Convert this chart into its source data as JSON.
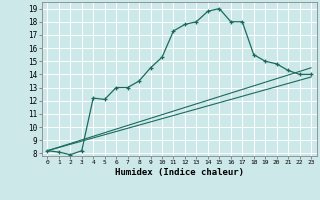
{
  "xlabel": "Humidex (Indice chaleur)",
  "bg_color": "#cce8e8",
  "line_color": "#1a6b5e",
  "xlim": [
    -0.5,
    23.5
  ],
  "ylim": [
    7.8,
    19.5
  ],
  "xticks": [
    0,
    1,
    2,
    3,
    4,
    5,
    6,
    7,
    8,
    9,
    10,
    11,
    12,
    13,
    14,
    15,
    16,
    17,
    18,
    19,
    20,
    21,
    22,
    23
  ],
  "yticks": [
    8,
    9,
    10,
    11,
    12,
    13,
    14,
    15,
    16,
    17,
    18,
    19
  ],
  "line1_x": [
    0,
    1,
    2,
    3,
    4,
    5,
    6,
    7,
    8,
    9,
    10,
    11,
    12,
    13,
    14,
    15,
    16,
    17,
    18,
    19,
    20,
    21,
    22,
    23
  ],
  "line1_y": [
    8.2,
    8.1,
    7.9,
    8.2,
    12.2,
    12.1,
    13.0,
    13.0,
    13.5,
    14.5,
    15.3,
    17.3,
    17.8,
    18.0,
    18.8,
    19.0,
    18.0,
    18.0,
    15.5,
    15.0,
    14.8,
    14.3,
    14.0,
    14.0
  ],
  "line2_x": [
    0,
    23
  ],
  "line2_y": [
    8.2,
    14.5
  ],
  "line3_x": [
    0,
    23
  ],
  "line3_y": [
    8.2,
    13.8
  ]
}
